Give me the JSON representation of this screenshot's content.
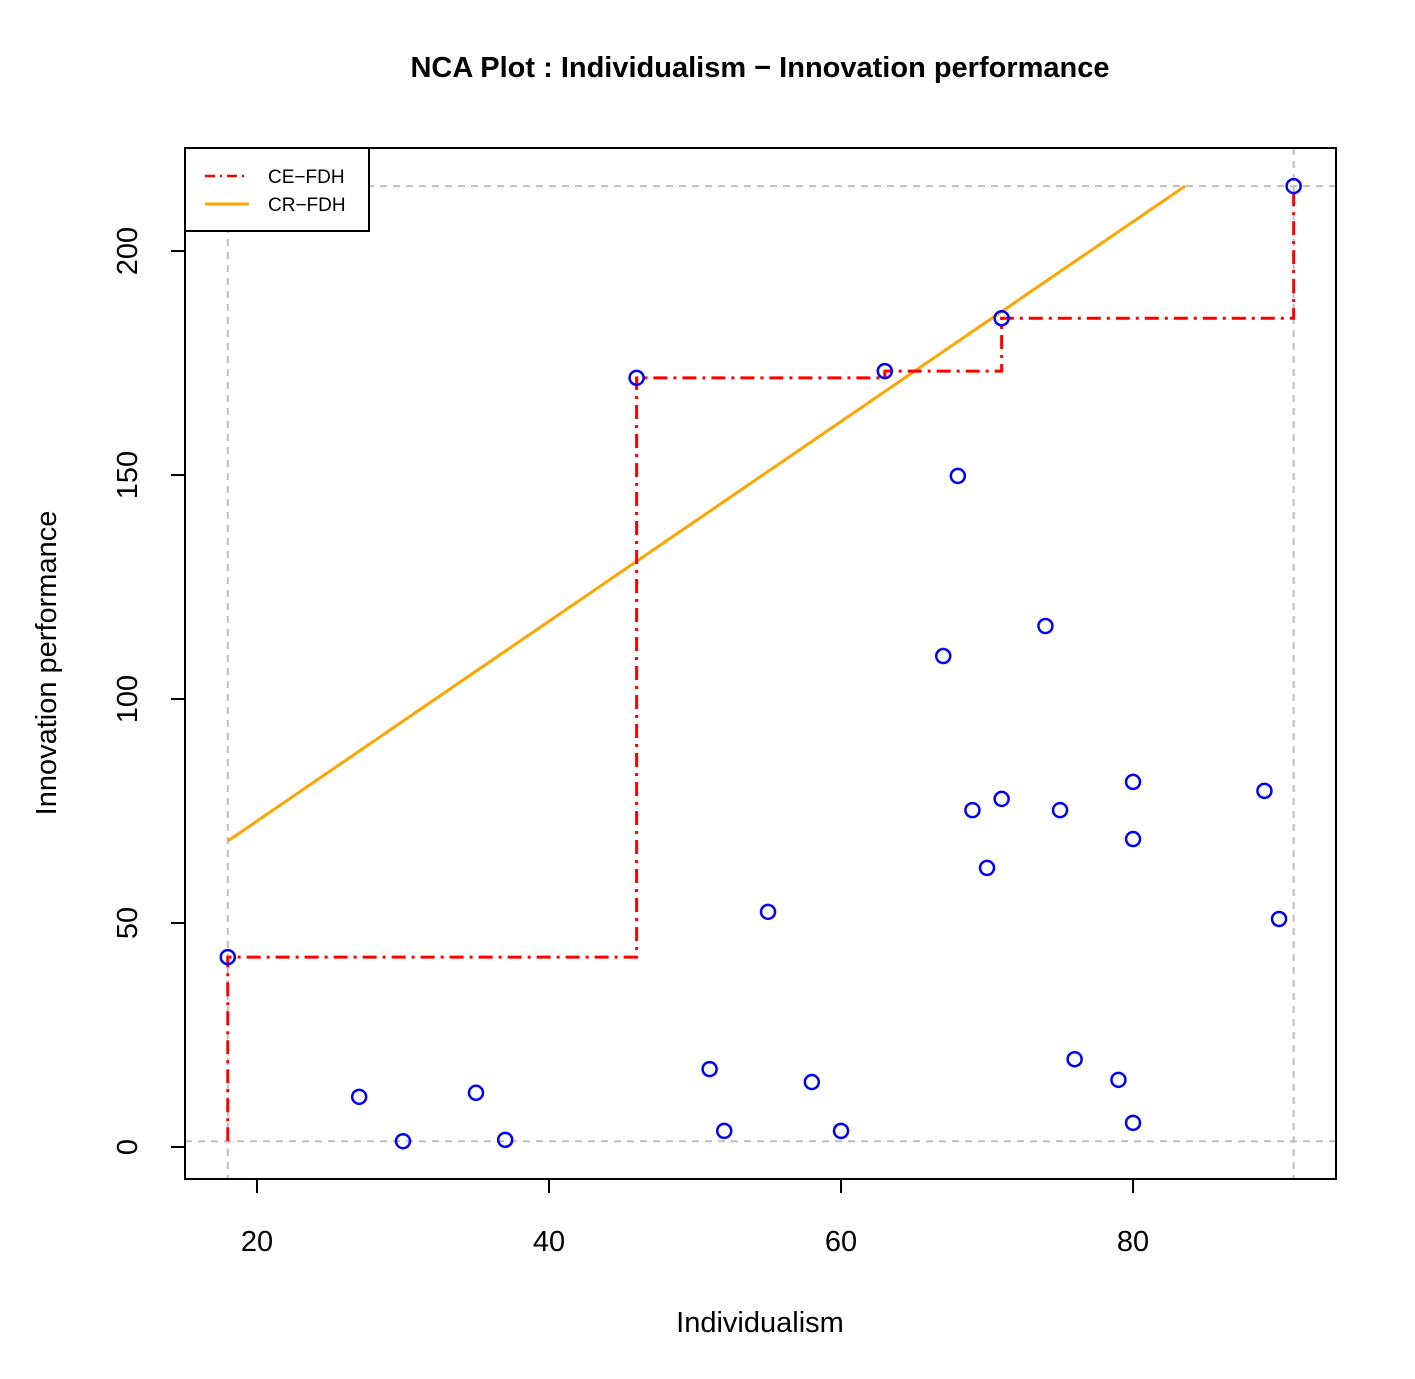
{
  "chart_data": {
    "type": "scatter",
    "title": "NCA Plot : Individualism − Innovation performance",
    "xlabel": "Individualism",
    "ylabel": "Innovation performance",
    "xlim": [
      15.07,
      93.9
    ],
    "ylim": [
      -7.14,
      223.0
    ],
    "xticks": [
      20,
      40,
      60,
      80
    ],
    "yticks": [
      0,
      50,
      100,
      150,
      200
    ],
    "grid": false,
    "legend_position": "top-left",
    "colors": {
      "points": "#0000ff",
      "ce_fdh": "#ff0000",
      "cr_fdh": "#ffa500",
      "reference": "#bebebe"
    },
    "points": [
      [
        18,
        42.4
      ],
      [
        27,
        11.2
      ],
      [
        30,
        1.3
      ],
      [
        35,
        12.1
      ],
      [
        37,
        1.6
      ],
      [
        46,
        171.7
      ],
      [
        51,
        17.4
      ],
      [
        52,
        3.6
      ],
      [
        55,
        52.5
      ],
      [
        58,
        14.5
      ],
      [
        60,
        3.6
      ],
      [
        63,
        173.2
      ],
      [
        67,
        109.6
      ],
      [
        68,
        149.8
      ],
      [
        69,
        75.2
      ],
      [
        70,
        62.3
      ],
      [
        71,
        185.0
      ],
      [
        71,
        77.7
      ],
      [
        74,
        116.3
      ],
      [
        75,
        75.2
      ],
      [
        76,
        19.6
      ],
      [
        79,
        15.0
      ],
      [
        80,
        81.5
      ],
      [
        80,
        68.75
      ],
      [
        80,
        5.4
      ],
      [
        89,
        79.5
      ],
      [
        90,
        50.9
      ],
      [
        91,
        214.5
      ]
    ],
    "reference_lines": {
      "x": [
        18,
        91
      ],
      "y": [
        1.3,
        214.5
      ]
    },
    "series": [
      {
        "name": "CE−FDH",
        "style": "dot-dash",
        "points": [
          [
            18,
            1.3
          ],
          [
            18,
            42.4
          ],
          [
            46,
            42.4
          ],
          [
            46,
            171.7
          ],
          [
            63,
            171.7
          ],
          [
            63,
            173.2
          ],
          [
            71,
            173.2
          ],
          [
            71,
            185
          ],
          [
            91,
            185
          ],
          [
            91,
            214.5
          ]
        ]
      },
      {
        "name": "CR−FDH",
        "style": "solid",
        "points": [
          [
            18,
            68.3
          ],
          [
            83.56,
            214.5
          ]
        ]
      }
    ]
  }
}
